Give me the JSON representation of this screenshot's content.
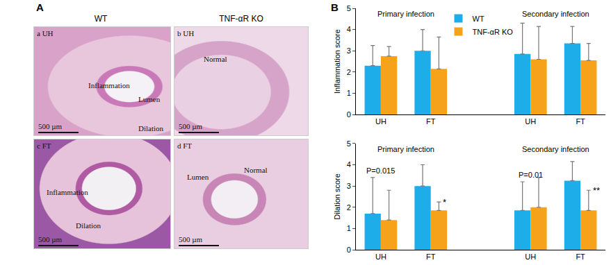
{
  "figure_a": {
    "label": "A",
    "columns": [
      "WT",
      "TNF-αR KO"
    ],
    "images": [
      {
        "label": "a UH",
        "texts": [
          "Inflammation",
          "Lumen",
          "Dilation"
        ],
        "scale_bar": "500 µm"
      },
      {
        "label": "b UH",
        "texts": [
          "Normal"
        ],
        "scale_bar": "500 µm"
      },
      {
        "label": "c FT",
        "texts": [
          "Inflammation",
          "Dilation"
        ],
        "scale_bar": "500 µm"
      },
      {
        "label": "d FT",
        "texts": [
          "Lumen",
          "Normal"
        ],
        "scale_bar": "500 µm"
      }
    ]
  },
  "chart_data": [
    {
      "type": "bar",
      "label": "B",
      "y_label": "Inflammation score",
      "categories": [
        "UH",
        "FT",
        null,
        "UH",
        "FT"
      ],
      "groups": [
        {
          "name": "Primary infection",
          "positions": [
            0,
            1
          ]
        },
        {
          "name": "Secondary infection",
          "positions": [
            3,
            4
          ]
        }
      ],
      "series": [
        {
          "name": "WT",
          "color": "#1daee9",
          "values": [
            2.3,
            3.0,
            null,
            2.85,
            3.35
          ],
          "errors": [
            0.95,
            1.0,
            null,
            1.45,
            0.8
          ]
        },
        {
          "name": "TNF-αR KO",
          "color": "#f7a21b",
          "values": [
            2.75,
            2.15,
            null,
            2.6,
            2.55
          ],
          "errors": [
            0.45,
            1.5,
            null,
            1.55,
            0.8
          ]
        }
      ],
      "ylim": [
        0,
        5
      ],
      "yticks": [
        0,
        1,
        2,
        3,
        4,
        5
      ],
      "legend": "top"
    },
    {
      "type": "bar",
      "y_label": "Dilation score",
      "categories": [
        "UH",
        "FT",
        null,
        "UH",
        "FT"
      ],
      "groups": [
        {
          "name": "Primary infection",
          "positions": [
            0,
            1
          ]
        },
        {
          "name": "Secondary infection",
          "positions": [
            3,
            4
          ]
        }
      ],
      "series": [
        {
          "name": "WT",
          "color": "#1daee9",
          "values": [
            1.7,
            3.0,
            null,
            1.85,
            3.25
          ],
          "errors": [
            1.7,
            1.0,
            null,
            1.35,
            0.9
          ]
        },
        {
          "name": "TNF-αR KO",
          "color": "#f7a21b",
          "values": [
            1.4,
            1.85,
            null,
            2.0,
            1.85
          ],
          "errors": [
            1.4,
            0.4,
            null,
            1.4,
            0.95
          ]
        }
      ],
      "annotations": [
        {
          "text": "P=0.015",
          "x": 0,
          "series": "WT"
        },
        {
          "text": "*",
          "x": 1,
          "series": "TNF-αR KO"
        },
        {
          "text": "P=0.01",
          "x": 3,
          "series": "WT"
        },
        {
          "text": "**",
          "x": 4,
          "series": "TNF-αR KO"
        }
      ],
      "ylim": [
        0,
        5
      ],
      "yticks": [
        0,
        1,
        2,
        3,
        4,
        5
      ]
    }
  ]
}
